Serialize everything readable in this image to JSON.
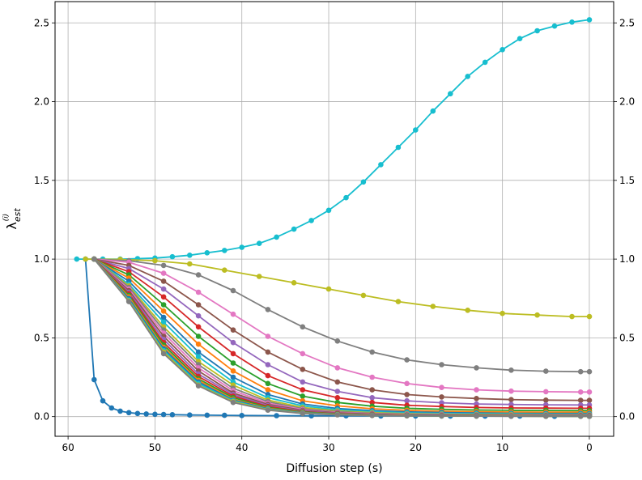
{
  "chart_data": {
    "type": "line",
    "title": "",
    "xlabel": "Diffusion step (s)",
    "ylabel": "λ_est^(i)",
    "ylabel_main": "λ",
    "ylabel_sub": "est",
    "ylabel_sup": "(i)",
    "xlim": [
      61.5,
      -2.8
    ],
    "ylim": [
      -0.125,
      2.635
    ],
    "x_ticks": [
      60,
      50,
      40,
      30,
      20,
      10,
      0
    ],
    "x_tick_labels": [
      "60",
      "50",
      "40",
      "30",
      "20",
      "10",
      "0"
    ],
    "y_ticks": [
      0.0,
      0.5,
      1.0,
      1.5,
      2.0,
      2.5
    ],
    "y_tick_labels": [
      "0.0",
      "0.5",
      "1.0",
      "1.5",
      "2.0",
      "2.5"
    ],
    "y_right_ticks": true,
    "grid": true,
    "marker": "circle",
    "series": [
      {
        "color": "#1f77b4",
        "x": [
          58,
          57,
          56,
          55,
          54,
          53,
          52,
          51,
          50,
          49,
          48,
          46,
          44,
          42,
          40,
          36,
          32,
          28,
          24,
          20,
          16,
          12,
          8,
          4,
          0
        ],
        "values": [
          1.0,
          0.235,
          0.1,
          0.055,
          0.035,
          0.025,
          0.02,
          0.017,
          0.015,
          0.013,
          0.012,
          0.01,
          0.009,
          0.008,
          0.007,
          0.006,
          0.005,
          0.005,
          0.004,
          0.004,
          0.003,
          0.003,
          0.003,
          0.002,
          0.002
        ]
      },
      {
        "color": "#17becf",
        "x": [
          59,
          56,
          54,
          52,
          50,
          48,
          46,
          44,
          42,
          40,
          38,
          36,
          34,
          32,
          30,
          28,
          26,
          24,
          22,
          20,
          18,
          16,
          14,
          12,
          10,
          8,
          6,
          4,
          2,
          0
        ],
        "values": [
          1.0,
          1.0,
          1.0,
          1.003,
          1.007,
          1.015,
          1.025,
          1.04,
          1.055,
          1.075,
          1.1,
          1.14,
          1.19,
          1.245,
          1.31,
          1.39,
          1.49,
          1.6,
          1.71,
          1.82,
          1.94,
          2.05,
          2.16,
          2.25,
          2.33,
          2.4,
          2.45,
          2.48,
          2.505,
          2.52
        ]
      },
      {
        "color": "#bcbd22",
        "x": [
          58,
          54,
          50,
          46,
          42,
          38,
          34,
          30,
          26,
          22,
          18,
          14,
          10,
          6,
          2,
          0
        ],
        "values": [
          1.0,
          0.998,
          0.99,
          0.97,
          0.93,
          0.89,
          0.85,
          0.81,
          0.77,
          0.73,
          0.7,
          0.675,
          0.655,
          0.645,
          0.635,
          0.635
        ]
      },
      {
        "color": "#7f7f7f",
        "x": [
          57,
          53,
          49,
          45,
          41,
          37,
          33,
          29,
          25,
          21,
          17,
          13,
          9,
          5,
          1,
          0
        ],
        "values": [
          1.0,
          0.99,
          0.96,
          0.9,
          0.8,
          0.68,
          0.57,
          0.48,
          0.41,
          0.36,
          0.33,
          0.31,
          0.295,
          0.288,
          0.285,
          0.285
        ]
      },
      {
        "color": "#e377c2",
        "x": [
          57,
          53,
          49,
          45,
          41,
          37,
          33,
          29,
          25,
          21,
          17,
          13,
          9,
          5,
          1,
          0
        ],
        "values": [
          1.0,
          0.98,
          0.91,
          0.79,
          0.65,
          0.51,
          0.4,
          0.31,
          0.25,
          0.21,
          0.185,
          0.17,
          0.162,
          0.158,
          0.156,
          0.156
        ]
      },
      {
        "color": "#8c564b",
        "x": [
          57,
          53,
          49,
          45,
          41,
          37,
          33,
          29,
          25,
          21,
          17,
          13,
          9,
          5,
          1,
          0
        ],
        "values": [
          1.0,
          0.96,
          0.86,
          0.71,
          0.55,
          0.41,
          0.3,
          0.22,
          0.17,
          0.14,
          0.125,
          0.115,
          0.108,
          0.105,
          0.103,
          0.103
        ]
      },
      {
        "color": "#9467bd",
        "x": [
          57,
          53,
          49,
          45,
          41,
          37,
          33,
          29,
          25,
          21,
          17,
          13,
          9,
          5,
          1,
          0
        ],
        "values": [
          1.0,
          0.94,
          0.81,
          0.64,
          0.47,
          0.33,
          0.22,
          0.16,
          0.12,
          0.1,
          0.088,
          0.08,
          0.077,
          0.075,
          0.074,
          0.074
        ]
      },
      {
        "color": "#d62728",
        "x": [
          57,
          53,
          49,
          45,
          41,
          37,
          33,
          29,
          25,
          21,
          17,
          13,
          9,
          5,
          1,
          0
        ],
        "values": [
          1.0,
          0.92,
          0.76,
          0.57,
          0.4,
          0.26,
          0.17,
          0.12,
          0.09,
          0.072,
          0.064,
          0.058,
          0.055,
          0.054,
          0.053,
          0.053
        ]
      },
      {
        "color": "#2ca02c",
        "x": [
          57,
          53,
          49,
          45,
          41,
          37,
          33,
          29,
          25,
          21,
          17,
          13,
          9,
          5,
          1,
          0
        ],
        "values": [
          1.0,
          0.9,
          0.71,
          0.51,
          0.34,
          0.21,
          0.13,
          0.09,
          0.066,
          0.053,
          0.046,
          0.042,
          0.04,
          0.039,
          0.038,
          0.038
        ]
      },
      {
        "color": "#ff7f0e",
        "x": [
          57,
          53,
          49,
          45,
          41,
          37,
          33,
          29,
          25,
          21,
          17,
          13,
          9,
          5,
          1,
          0
        ],
        "values": [
          1.0,
          0.88,
          0.67,
          0.46,
          0.29,
          0.17,
          0.1,
          0.068,
          0.05,
          0.04,
          0.034,
          0.031,
          0.029,
          0.028,
          0.028,
          0.028
        ]
      },
      {
        "color": "#1f77b4",
        "x": [
          57,
          53,
          49,
          45,
          41,
          37,
          33,
          29,
          25,
          21,
          17,
          13,
          9,
          5,
          1,
          0
        ],
        "values": [
          1.0,
          0.86,
          0.63,
          0.41,
          0.25,
          0.14,
          0.08,
          0.052,
          0.038,
          0.03,
          0.026,
          0.023,
          0.021,
          0.02,
          0.02,
          0.02
        ]
      },
      {
        "color": "#17becf",
        "x": [
          57,
          53,
          49,
          45,
          41,
          37,
          33,
          29,
          25,
          21,
          17,
          13,
          9,
          5,
          1,
          0
        ],
        "values": [
          1.0,
          0.84,
          0.6,
          0.38,
          0.22,
          0.12,
          0.068,
          0.043,
          0.031,
          0.024,
          0.02,
          0.018,
          0.017,
          0.016,
          0.016,
          0.016
        ]
      },
      {
        "color": "#bcbd22",
        "x": [
          57,
          53,
          49,
          45,
          41,
          37,
          33,
          29,
          25,
          21,
          17,
          13,
          9,
          5,
          1,
          0
        ],
        "values": [
          1.0,
          0.83,
          0.57,
          0.35,
          0.2,
          0.105,
          0.058,
          0.036,
          0.025,
          0.019,
          0.016,
          0.014,
          0.013,
          0.012,
          0.012,
          0.012
        ]
      },
      {
        "color": "#7f7f7f",
        "x": [
          57,
          53,
          49,
          45,
          41,
          37,
          33,
          29,
          25,
          21,
          17,
          13,
          9,
          5,
          1,
          0
        ],
        "values": [
          1.0,
          0.82,
          0.55,
          0.33,
          0.18,
          0.095,
          0.05,
          0.031,
          0.021,
          0.016,
          0.013,
          0.011,
          0.01,
          0.01,
          0.01,
          0.01
        ]
      },
      {
        "color": "#e377c2",
        "x": [
          57,
          53,
          49,
          45,
          41,
          37,
          33,
          29,
          25,
          21,
          17,
          13,
          9,
          5,
          1,
          0
        ],
        "values": [
          1.0,
          0.81,
          0.53,
          0.31,
          0.165,
          0.085,
          0.045,
          0.027,
          0.018,
          0.013,
          0.011,
          0.009,
          0.008,
          0.008,
          0.008,
          0.008
        ]
      },
      {
        "color": "#8c564b",
        "x": [
          57,
          53,
          49,
          45,
          41,
          37,
          33,
          29,
          25,
          21,
          17,
          13,
          9,
          5,
          1,
          0
        ],
        "values": [
          1.0,
          0.8,
          0.51,
          0.29,
          0.15,
          0.077,
          0.04,
          0.024,
          0.016,
          0.011,
          0.009,
          0.008,
          0.007,
          0.007,
          0.007,
          0.007
        ]
      },
      {
        "color": "#9467bd",
        "x": [
          57,
          53,
          49,
          45,
          41,
          37,
          33,
          29,
          25,
          21,
          17,
          13,
          9,
          5,
          1,
          0
        ],
        "values": [
          1.0,
          0.79,
          0.49,
          0.27,
          0.14,
          0.07,
          0.036,
          0.021,
          0.014,
          0.01,
          0.008,
          0.007,
          0.006,
          0.006,
          0.006,
          0.006
        ]
      },
      {
        "color": "#d62728",
        "x": [
          57,
          53,
          49,
          45,
          41,
          37,
          33,
          29,
          25,
          21,
          17,
          13,
          9,
          5,
          1,
          0
        ],
        "values": [
          1.0,
          0.78,
          0.47,
          0.255,
          0.13,
          0.064,
          0.032,
          0.019,
          0.012,
          0.009,
          0.007,
          0.006,
          0.005,
          0.005,
          0.005,
          0.005
        ]
      },
      {
        "color": "#2ca02c",
        "x": [
          57,
          53,
          49,
          45,
          41,
          37,
          33,
          29,
          25,
          21,
          17,
          13,
          9,
          5,
          1,
          0
        ],
        "values": [
          1.0,
          0.77,
          0.455,
          0.24,
          0.12,
          0.058,
          0.029,
          0.017,
          0.011,
          0.008,
          0.006,
          0.005,
          0.004,
          0.004,
          0.004,
          0.004
        ]
      },
      {
        "color": "#ff7f0e",
        "x": [
          57,
          53,
          49,
          45,
          41,
          37,
          33,
          29,
          25,
          21,
          17,
          13,
          9,
          5,
          1,
          0
        ],
        "values": [
          1.0,
          0.76,
          0.44,
          0.23,
          0.11,
          0.053,
          0.026,
          0.015,
          0.01,
          0.007,
          0.005,
          0.004,
          0.004,
          0.003,
          0.003,
          0.003
        ]
      },
      {
        "color": "#1f77b4",
        "x": [
          57,
          53,
          49,
          45,
          41,
          37,
          33,
          29,
          25,
          21,
          17,
          13,
          9,
          5,
          1,
          0
        ],
        "values": [
          1.0,
          0.75,
          0.43,
          0.22,
          0.105,
          0.049,
          0.024,
          0.014,
          0.009,
          0.006,
          0.005,
          0.004,
          0.003,
          0.003,
          0.003,
          0.003
        ]
      },
      {
        "color": "#17becf",
        "x": [
          57,
          53,
          49,
          45,
          41,
          37,
          33,
          29,
          25,
          21,
          17,
          13,
          9,
          5,
          1,
          0
        ],
        "values": [
          1.0,
          0.74,
          0.42,
          0.21,
          0.1,
          0.046,
          0.022,
          0.013,
          0.008,
          0.006,
          0.004,
          0.003,
          0.003,
          0.003,
          0.002,
          0.002
        ]
      },
      {
        "color": "#bcbd22",
        "x": [
          57,
          53,
          49,
          45,
          41,
          37,
          33,
          29,
          25,
          21,
          17,
          13,
          9,
          5,
          1,
          0
        ],
        "values": [
          1.0,
          0.735,
          0.41,
          0.2,
          0.095,
          0.043,
          0.021,
          0.012,
          0.007,
          0.005,
          0.004,
          0.003,
          0.003,
          0.002,
          0.002,
          0.002
        ]
      },
      {
        "color": "#7f7f7f",
        "x": [
          57,
          53,
          49,
          45,
          41,
          37,
          33,
          29,
          25,
          21,
          17,
          13,
          9,
          5,
          1,
          0
        ],
        "values": [
          1.0,
          0.73,
          0.4,
          0.195,
          0.09,
          0.041,
          0.02,
          0.011,
          0.007,
          0.005,
          0.004,
          0.003,
          0.002,
          0.002,
          0.002,
          0.002
        ]
      }
    ]
  }
}
